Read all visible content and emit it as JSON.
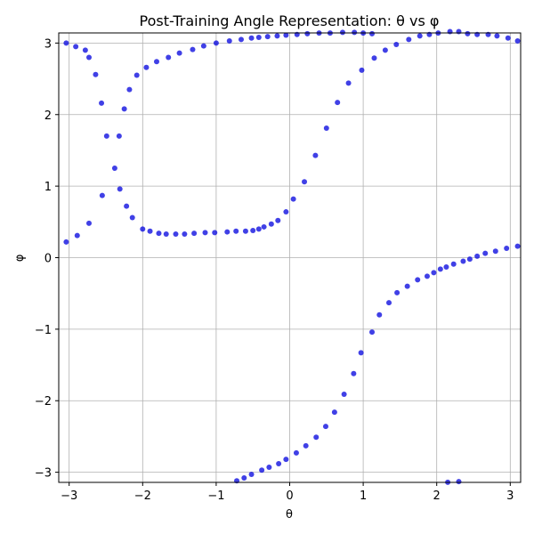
{
  "chart_data": {
    "type": "scatter",
    "title": "Post-Training Angle Representation: θ vs φ",
    "xlabel": "θ",
    "ylabel": "φ",
    "xlim": [
      -3.1416,
      3.1416
    ],
    "ylim": [
      -3.1416,
      3.1416
    ],
    "xticks": [
      -3,
      -2,
      -1,
      0,
      1,
      2,
      3
    ],
    "yticks": [
      -3,
      -2,
      -1,
      0,
      1,
      2,
      3
    ],
    "xtick_labels": [
      "−3",
      "−2",
      "−1",
      "0",
      "1",
      "2",
      "3"
    ],
    "ytick_labels": [
      "−3",
      "−2",
      "−1",
      "0",
      "1",
      "2",
      "3"
    ],
    "grid": true,
    "marker_color": "#0000dd",
    "series": [
      {
        "x": [
          -3.04,
          -2.91,
          -2.78,
          -2.73,
          -2.64,
          -2.56,
          -2.49,
          -2.38,
          -2.31,
          -2.22,
          -2.14,
          -2.0,
          -1.9,
          -1.78,
          -1.68,
          -1.55,
          -1.43,
          -1.3,
          -1.15,
          -1.02,
          -0.85,
          -0.73,
          -0.6,
          -0.5,
          -0.42,
          -0.35,
          -0.25,
          -0.16,
          -0.05,
          0.05,
          0.2,
          0.35,
          0.5,
          0.65,
          0.8,
          0.98,
          1.15,
          1.3,
          1.45,
          1.62,
          1.77,
          1.9,
          2.02,
          2.18,
          2.3,
          2.42,
          2.55,
          2.7,
          2.82,
          2.97,
          3.1
        ],
        "y": [
          3.0,
          2.95,
          2.9,
          2.8,
          2.56,
          2.16,
          1.7,
          1.25,
          0.96,
          0.72,
          0.56,
          0.4,
          0.37,
          0.34,
          0.33,
          0.33,
          0.33,
          0.34,
          0.35,
          0.35,
          0.36,
          0.37,
          0.37,
          0.38,
          0.4,
          0.43,
          0.47,
          0.52,
          0.64,
          0.82,
          1.06,
          1.43,
          1.81,
          2.17,
          2.44,
          2.62,
          2.79,
          2.9,
          2.98,
          3.05,
          3.1,
          3.12,
          3.14,
          3.16,
          3.16,
          3.13,
          3.12,
          3.12,
          3.1,
          3.07,
          3.03
        ]
      },
      {
        "x": [
          -3.04,
          -2.89,
          -2.73,
          -2.55,
          -2.32,
          -2.25,
          -2.18,
          -2.08,
          -1.95,
          -1.81,
          -1.65,
          -1.5,
          -1.32,
          -1.17,
          -1.0,
          -0.82,
          -0.66,
          -0.52,
          -0.42,
          -0.3,
          -0.17,
          -0.05,
          0.1,
          0.24,
          0.4,
          0.55,
          0.72,
          0.88,
          1.0,
          1.12,
          1.22,
          1.35,
          1.46,
          1.6,
          1.74,
          1.87,
          1.96,
          2.05,
          2.13,
          2.23,
          2.36,
          2.45,
          2.55,
          2.66,
          2.8,
          2.95,
          3.1
        ],
        "y": [
          0.22,
          0.31,
          0.48,
          0.87,
          1.7,
          2.08,
          2.35,
          2.55,
          2.66,
          2.74,
          2.8,
          2.86,
          2.91,
          2.96,
          3.0,
          3.03,
          3.05,
          3.07,
          3.08,
          3.09,
          3.1,
          3.11,
          3.12,
          3.13,
          3.14,
          3.14,
          3.15,
          3.15,
          3.14,
          3.13,
          -0.8,
          -0.63,
          -0.49,
          -0.4,
          -0.31,
          -0.26,
          -0.21,
          -0.16,
          -0.13,
          -0.09,
          -0.05,
          -0.02,
          0.02,
          0.06,
          0.09,
          0.13,
          0.16
        ]
      },
      {
        "x": [
          -0.72,
          -0.62,
          -0.52,
          -0.38,
          -0.28,
          -0.15,
          -0.05,
          0.09,
          0.22,
          0.36,
          0.49,
          0.61,
          0.74,
          0.87,
          0.97,
          1.12,
          2.15,
          2.3
        ],
        "y": [
          -3.12,
          -3.08,
          -3.03,
          -2.97,
          -2.93,
          -2.88,
          -2.82,
          -2.73,
          -2.63,
          -2.51,
          -2.36,
          -2.16,
          -1.91,
          -1.62,
          -1.33,
          -1.04,
          -3.14,
          -3.13
        ]
      }
    ]
  }
}
